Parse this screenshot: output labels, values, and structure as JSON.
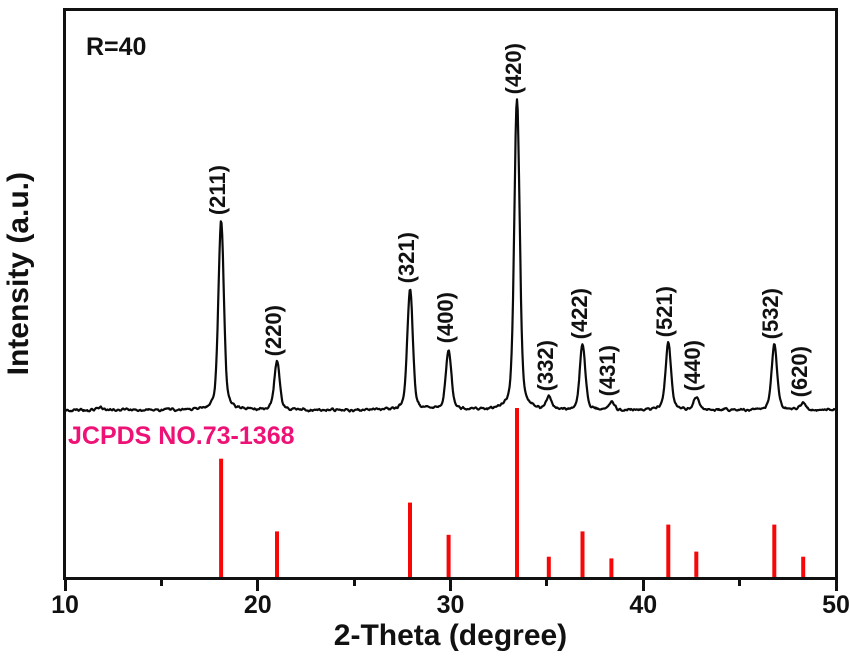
{
  "figure": {
    "annotation": "R=40",
    "colors": {
      "curve": "#0a0a0a",
      "reference_sticks": "#f70707",
      "reference_text": "#ee1277",
      "axis": "#111111",
      "background": "#ffffff"
    }
  },
  "chart_data": {
    "type": "line",
    "subtype": "xrd-pattern",
    "title": "",
    "xlabel": "2-Theta (degree)",
    "ylabel": "Intensity (a.u.)",
    "xlim": [
      10,
      50
    ],
    "x_major_ticks": [
      10,
      20,
      30,
      40,
      50
    ],
    "x_minor_ticks": [
      15,
      25,
      35,
      45
    ],
    "grid": false,
    "legend": false,
    "annotation": "R=40",
    "series": [
      {
        "name": "XRD pattern (R=40)",
        "role": "measured-curve",
        "color": "#0a0a0a",
        "peaks": [
          {
            "hkl": "",
            "two_theta": 11.8,
            "rel_intensity": 0.9
          },
          {
            "hkl": "(211)",
            "two_theta": 18.1,
            "rel_intensity": 61
          },
          {
            "hkl": "(220)",
            "two_theta": 21.0,
            "rel_intensity": 15.5
          },
          {
            "hkl": "(321)",
            "two_theta": 27.9,
            "rel_intensity": 39
          },
          {
            "hkl": "(400)",
            "two_theta": 29.9,
            "rel_intensity": 19.5
          },
          {
            "hkl": "(420)",
            "two_theta": 33.45,
            "rel_intensity": 100
          },
          {
            "hkl": "(332)",
            "two_theta": 35.1,
            "rel_intensity": 4
          },
          {
            "hkl": "(422)",
            "two_theta": 36.85,
            "rel_intensity": 21
          },
          {
            "hkl": "(431)",
            "two_theta": 38.35,
            "rel_intensity": 2.5
          },
          {
            "hkl": "(521)",
            "two_theta": 41.3,
            "rel_intensity": 21.6
          },
          {
            "hkl": "(440)",
            "two_theta": 42.75,
            "rel_intensity": 4.2
          },
          {
            "hkl": "(532)",
            "two_theta": 46.8,
            "rel_intensity": 21
          },
          {
            "hkl": "(620)",
            "two_theta": 48.3,
            "rel_intensity": 2
          }
        ]
      },
      {
        "name": "JCPDS NO.73-1368",
        "role": "reference-sticks",
        "color": "#f70707",
        "label_color": "#ee1277",
        "sticks": [
          {
            "two_theta": 18.1,
            "rel_intensity": 70
          },
          {
            "two_theta": 21.0,
            "rel_intensity": 27
          },
          {
            "two_theta": 27.9,
            "rel_intensity": 44
          },
          {
            "two_theta": 29.9,
            "rel_intensity": 25
          },
          {
            "two_theta": 33.45,
            "rel_intensity": 100
          },
          {
            "two_theta": 35.1,
            "rel_intensity": 12
          },
          {
            "two_theta": 36.85,
            "rel_intensity": 27
          },
          {
            "two_theta": 38.35,
            "rel_intensity": 11
          },
          {
            "two_theta": 41.3,
            "rel_intensity": 31
          },
          {
            "two_theta": 42.75,
            "rel_intensity": 15
          },
          {
            "two_theta": 46.8,
            "rel_intensity": 31
          },
          {
            "two_theta": 48.3,
            "rel_intensity": 12
          }
        ]
      }
    ]
  }
}
